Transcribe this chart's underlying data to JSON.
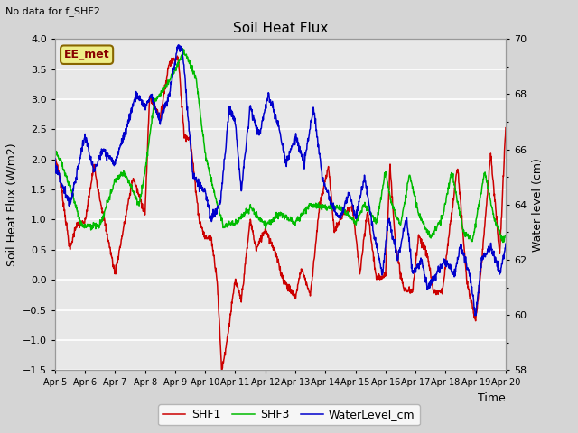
{
  "title": "Soil Heat Flux",
  "note": "No data for f_SHF2",
  "xlabel": "Time",
  "ylabel_left": "Soil Heat Flux (W/m2)",
  "ylabel_right": "Water level (cm)",
  "ylim_left": [
    -1.5,
    4.0
  ],
  "ylim_right": [
    58,
    70
  ],
  "legend": [
    "SHF1",
    "SHF3",
    "WaterLevel_cm"
  ],
  "colors": [
    "#cc0000",
    "#00bb00",
    "#0000cc"
  ],
  "bg_color": "#d5d5d5",
  "plot_bg_color": "#e8e8e8",
  "grid_color": "#ffffff",
  "xtick_labels": [
    "Apr 5",
    "Apr 6",
    "Apr 7",
    "Apr 8",
    "Apr 9",
    "Apr 10",
    "Apr 11",
    "Apr 12",
    "Apr 13",
    "Apr 14",
    "Apr 15",
    "Apr 16",
    "Apr 17",
    "Apr 18",
    "Apr 19",
    "Apr 20"
  ],
  "ee_met_bg": "#eeee88",
  "ee_met_edge": "#886600",
  "ee_met_text": "#880000",
  "title_fontsize": 11,
  "axis_label_fontsize": 9,
  "tick_fontsize": 8,
  "legend_fontsize": 9,
  "note_fontsize": 8
}
